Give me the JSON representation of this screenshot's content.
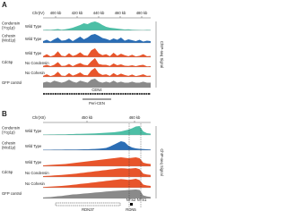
{
  "panels": [
    {
      "label": "A",
      "chromosome": "Chr(IV)",
      "ticks": [
        "400 kb",
        "420 kb",
        "440 kb",
        "460 kb",
        "480 kb"
      ],
      "signal_label": "ChIP-seq Signal",
      "features": [
        "CEN4",
        "Peri-CEN"
      ],
      "groups": [
        {
          "label": [
            "Condensin",
            "(Ycg1p)"
          ],
          "tracks": [
            {
              "name": "Wild Type",
              "color": "#4dbfa6",
              "values": [
                5,
                8,
                6,
                10,
                15,
                8,
                12,
                20,
                30,
                45,
                60,
                80,
                70,
                90,
                100,
                85,
                60,
                40,
                30,
                25,
                20,
                15,
                10,
                12,
                8,
                6,
                5,
                4,
                6,
                5
              ]
            }
          ]
        },
        {
          "label": [
            "Cohesin",
            "(Mcd1p)"
          ],
          "tracks": [
            {
              "name": "Wild Type",
              "color": "#2a6db5",
              "values": [
                20,
                35,
                15,
                40,
                60,
                25,
                30,
                50,
                20,
                45,
                70,
                40,
                60,
                90,
                100,
                80,
                55,
                45,
                30,
                50,
                35,
                60,
                25,
                40,
                30,
                20,
                35,
                15,
                25,
                20
              ]
            }
          ]
        },
        {
          "label": [
            "Cdc5p"
          ],
          "tracks": [
            {
              "name": "Wild Type",
              "color": "#e8552b",
              "values": [
                10,
                30,
                8,
                20,
                60,
                15,
                10,
                40,
                12,
                25,
                50,
                20,
                15,
                70,
                90,
                40,
                20,
                30,
                10,
                45,
                15,
                35,
                20,
                10,
                25,
                8,
                15,
                30,
                10,
                12
              ]
            },
            {
              "name": "No Condensin",
              "color": "#e8552b",
              "values": [
                12,
                25,
                10,
                25,
                55,
                12,
                15,
                35,
                10,
                30,
                45,
                25,
                20,
                65,
                100,
                35,
                25,
                25,
                12,
                40,
                20,
                30,
                15,
                12,
                20,
                10,
                20,
                25,
                8,
                10
              ]
            },
            {
              "name": "No Cohesin",
              "color": "#e8552b",
              "values": [
                8,
                20,
                6,
                15,
                40,
                10,
                8,
                30,
                10,
                20,
                35,
                15,
                12,
                50,
                70,
                30,
                15,
                20,
                8,
                30,
                12,
                25,
                15,
                8,
                18,
                6,
                12,
                20,
                8,
                10
              ]
            }
          ]
        },
        {
          "label": [
            "GFP control"
          ],
          "tracks": [
            {
              "color": "#8a8a8a",
              "values": [
                5,
                6,
                5,
                7,
                6,
                5,
                6,
                8,
                6,
                5,
                7,
                6,
                5,
                8,
                9,
                6,
                5,
                6,
                5,
                7,
                5,
                6,
                5,
                5,
                6,
                5,
                5,
                6,
                5,
                5
              ]
            }
          ]
        }
      ]
    },
    {
      "label": "B",
      "chromosome": "Chr(XII)",
      "ticks": [
        "450 kb",
        "460 kb"
      ],
      "signal_label": "ChIP-seq Signal",
      "features": [
        "RDN37",
        "RDN5",
        "NTS2",
        "NTS1"
      ],
      "groups": [
        {
          "label": [
            "Condensin",
            "(Ycg1p)"
          ],
          "tracks": [
            {
              "name": "Wild Type",
              "color": "#4dbfa6",
              "values": [
                5,
                5,
                6,
                6,
                7,
                8,
                8,
                10,
                10,
                12,
                12,
                14,
                15,
                16,
                18,
                20,
                22,
                25,
                28,
                30,
                35,
                40,
                50,
                60,
                75,
                95,
                100,
                40,
                20,
                15
              ]
            }
          ]
        },
        {
          "label": [
            "Cohesin",
            "(Mcd1p)"
          ],
          "tracks": [
            {
              "name": "Wild Type",
              "color": "#2a6db5",
              "values": [
                5,
                5,
                5,
                6,
                6,
                6,
                7,
                7,
                8,
                8,
                9,
                10,
                10,
                12,
                14,
                16,
                20,
                25,
                40,
                60,
                80,
                100,
                90,
                50,
                30,
                20,
                15,
                12,
                10,
                8
              ]
            }
          ]
        },
        {
          "label": [
            "Cdc5p"
          ],
          "tracks": [
            {
              "name": "Wild Type",
              "color": "#e8552b",
              "values": [
                10,
                12,
                15,
                18,
                20,
                22,
                25,
                30,
                35,
                40,
                45,
                50,
                55,
                60,
                65,
                70,
                75,
                80,
                85,
                90,
                95,
                100,
                95,
                90,
                95,
                100,
                90,
                40,
                30,
                25
              ]
            },
            {
              "name": "No Condensin",
              "color": "#e8552b",
              "values": [
                10,
                12,
                14,
                17,
                20,
                23,
                26,
                30,
                34,
                38,
                44,
                48,
                54,
                58,
                64,
                68,
                74,
                78,
                84,
                88,
                94,
                98,
                96,
                92,
                96,
                100,
                88,
                38,
                28,
                22
              ]
            },
            {
              "name": "No Cohesin",
              "color": "#e8552b",
              "values": [
                8,
                10,
                12,
                15,
                18,
                20,
                24,
                28,
                32,
                36,
                42,
                46,
                50,
                56,
                60,
                66,
                70,
                76,
                80,
                86,
                90,
                96,
                92,
                88,
                92,
                100,
                85,
                35,
                25,
                20
              ]
            }
          ]
        },
        {
          "label": [
            "GFP control"
          ],
          "tracks": [
            {
              "color": "#8a8a8a",
              "values": [
                10,
                12,
                14,
                18,
                22,
                25,
                30,
                35,
                40,
                42,
                45,
                50,
                52,
                55,
                60,
                62,
                65,
                70,
                72,
                75,
                78,
                80,
                82,
                85,
                88,
                90,
                85,
                30,
                20,
                15
              ]
            }
          ]
        }
      ]
    }
  ]
}
